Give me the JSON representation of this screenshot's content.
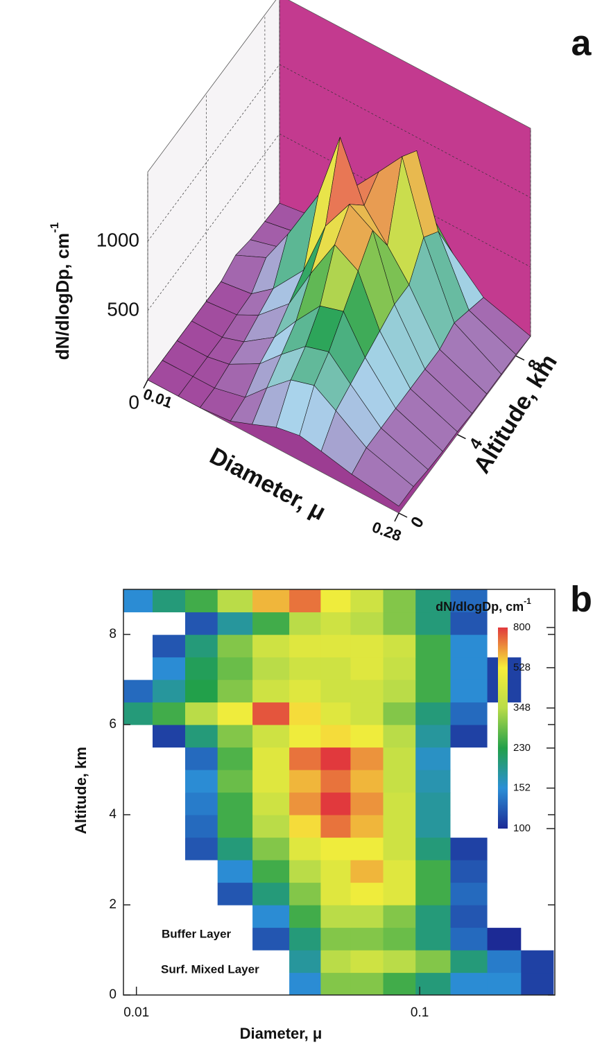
{
  "chart_data": [
    {
      "type": "surface3d",
      "label": "a",
      "z_label": "dN/dlogDp, cm",
      "z_label_sup": "-1",
      "x_label": "Diameter,  μ",
      "y_label": "Altitude, km",
      "x": [
        0.01,
        0.015,
        0.02,
        0.03,
        0.04,
        0.055,
        0.075,
        0.1,
        0.15,
        0.28
      ],
      "xlim": [
        0.01,
        0.28
      ],
      "xticks": [
        0.01,
        0.28
      ],
      "log_x": true,
      "y": [
        0,
        1,
        2,
        3,
        4,
        5,
        6,
        7,
        8,
        9
      ],
      "ylim": [
        0,
        9
      ],
      "yticks": [
        0,
        4,
        8
      ],
      "zlim": [
        0,
        1500
      ],
      "zticks": [
        0,
        500,
        1000
      ],
      "z": [
        [
          0,
          0,
          0,
          20,
          80,
          150,
          180,
          150,
          100,
          50
        ],
        [
          0,
          0,
          0,
          50,
          200,
          350,
          400,
          300,
          150,
          50
        ],
        [
          0,
          0,
          30,
          150,
          300,
          450,
          500,
          350,
          150,
          30
        ],
        [
          0,
          0,
          50,
          200,
          400,
          600,
          650,
          400,
          150,
          20
        ],
        [
          0,
          20,
          100,
          300,
          600,
          900,
          800,
          450,
          150,
          20
        ],
        [
          0,
          30,
          150,
          400,
          800,
          1050,
          950,
          500,
          150,
          10
        ],
        [
          50,
          150,
          400,
          800,
          1300,
          900,
          700,
          500,
          150,
          10
        ],
        [
          20,
          80,
          250,
          500,
          800,
          1000,
          1200,
          700,
          200,
          10
        ],
        [
          10,
          50,
          200,
          400,
          700,
          900,
          1100,
          600,
          150,
          10
        ],
        [
          0,
          30,
          150,
          300,
          500,
          600,
          500,
          300,
          100,
          0
        ]
      ],
      "colors": [
        "#a24a9e",
        "#a9d4ec",
        "#2aa45a",
        "#e8e84a",
        "#e84a5a",
        "#d43c8e"
      ],
      "floor_color": "#9c3d92",
      "back_wall_color": "#c33a8f",
      "side_wall_color": "#f6f4f6"
    },
    {
      "type": "contour",
      "label": "b",
      "x_label": "Diameter, μ",
      "y_label": "Altitude, km",
      "x": [
        0.01,
        0.013,
        0.017,
        0.022,
        0.03,
        0.04,
        0.05,
        0.065,
        0.085,
        0.11,
        0.15,
        0.2,
        0.26
      ],
      "xlim": [
        0.009,
        0.3
      ],
      "xticks": [
        0.01,
        0.1
      ],
      "log_x": true,
      "y": [
        0.25,
        0.75,
        1.25,
        1.75,
        2.25,
        2.75,
        3.25,
        3.75,
        4.25,
        4.75,
        5.25,
        5.75,
        6.25,
        6.75,
        7.25,
        7.75,
        8.25,
        8.75
      ],
      "ylim": [
        0,
        9
      ],
      "yticks": [
        0,
        2,
        4,
        6,
        8
      ],
      "z": [
        [
          0,
          0,
          0,
          0,
          0,
          150,
          300,
          300,
          250,
          200,
          150,
          150,
          110
        ],
        [
          0,
          0,
          0,
          0,
          0,
          180,
          350,
          400,
          350,
          300,
          200,
          140,
          110
        ],
        [
          0,
          0,
          0,
          0,
          120,
          200,
          300,
          300,
          280,
          200,
          130,
          100,
          0
        ],
        [
          0,
          0,
          0,
          0,
          150,
          250,
          350,
          350,
          300,
          200,
          120,
          0,
          0
        ],
        [
          0,
          0,
          0,
          120,
          200,
          300,
          450,
          500,
          450,
          250,
          130,
          0,
          0
        ],
        [
          0,
          0,
          0,
          150,
          250,
          350,
          450,
          600,
          450,
          250,
          120,
          0,
          0
        ],
        [
          0,
          0,
          120,
          200,
          300,
          450,
          500,
          500,
          400,
          200,
          110,
          0,
          0
        ],
        [
          0,
          0,
          130,
          250,
          350,
          550,
          700,
          600,
          400,
          180,
          0,
          0,
          0
        ],
        [
          0,
          0,
          140,
          250,
          400,
          650,
          800,
          650,
          400,
          180,
          0,
          0,
          0
        ],
        [
          0,
          0,
          150,
          280,
          450,
          600,
          700,
          600,
          380,
          170,
          0,
          0,
          0
        ],
        [
          0,
          0,
          130,
          260,
          450,
          700,
          800,
          650,
          380,
          160,
          0,
          0,
          0
        ],
        [
          0,
          110,
          200,
          300,
          400,
          500,
          550,
          500,
          350,
          180,
          110,
          0,
          0
        ],
        [
          200,
          250,
          350,
          500,
          750,
          550,
          450,
          400,
          300,
          200,
          130,
          0,
          0
        ],
        [
          130,
          180,
          230,
          300,
          400,
          450,
          400,
          400,
          350,
          250,
          150,
          110,
          0
        ],
        [
          0,
          150,
          220,
          280,
          350,
          400,
          400,
          450,
          380,
          250,
          150,
          110,
          0
        ],
        [
          0,
          120,
          200,
          300,
          400,
          450,
          450,
          450,
          400,
          250,
          150,
          0,
          0
        ],
        [
          0,
          0,
          120,
          180,
          250,
          350,
          400,
          350,
          300,
          200,
          120,
          0,
          0
        ],
        [
          150,
          200,
          250,
          350,
          600,
          700,
          500,
          400,
          300,
          200,
          130,
          0,
          0
        ]
      ],
      "colorbar_title": "dN/dlogDp, cm",
      "colorbar_title_sup": "-1",
      "colorbar_lim": [
        100,
        800
      ],
      "colorbar_ticks": [
        100,
        152,
        230,
        348,
        528,
        800
      ],
      "colorbar_log": true,
      "colors": [
        "#1c2a95",
        "#2b8fd6",
        "#22a04a",
        "#b9dc48",
        "#f7ee3a",
        "#e1393d"
      ],
      "annotations": [
        "Buffer Layer",
        "Surf. Mixed Layer"
      ]
    }
  ]
}
